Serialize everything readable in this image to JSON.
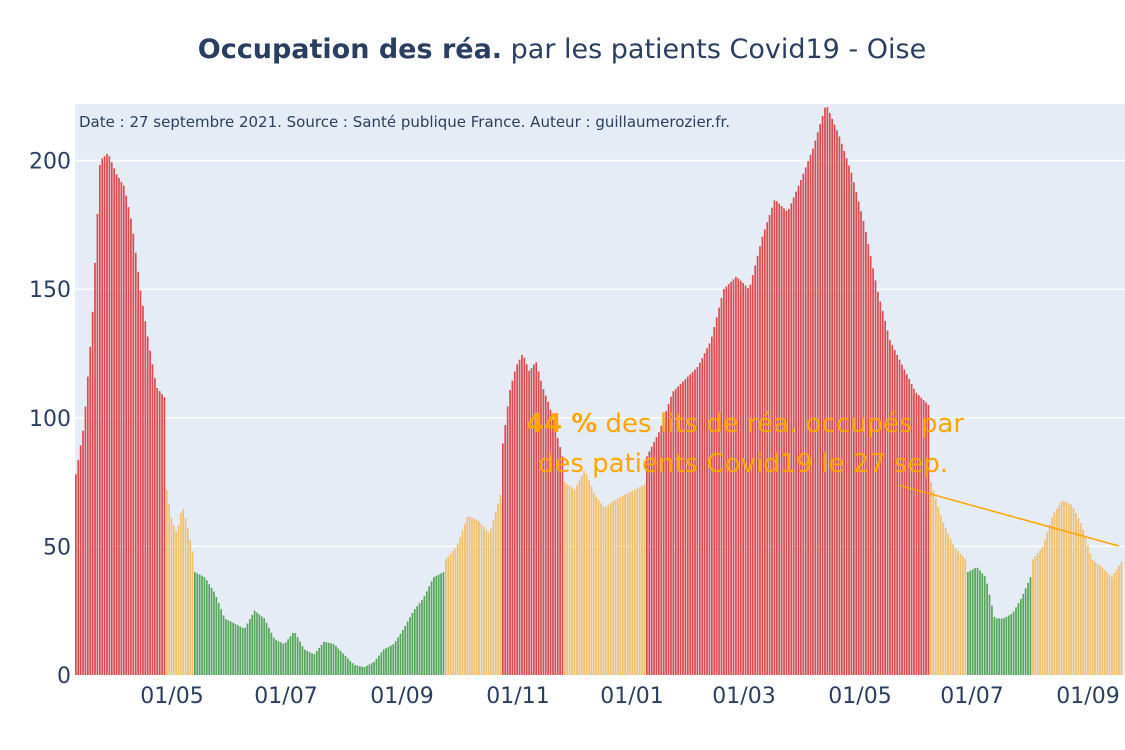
{
  "chart_data": {
    "type": "bar",
    "title_bold": "Occupation des réa.",
    "title_rest": " par les patients Covid19 - Oise",
    "note": "Date : 27 septembre 2021. Source : Santé publique France. Auteur : guillaumerozier.fr.",
    "annotation": {
      "value": "44",
      "pct": " %",
      "line1_rest": " des lits de réa. occupés par",
      "line2": "des patients Covid19 le 27 sep."
    },
    "xlabel": "",
    "ylabel": "",
    "ylim": [
      0,
      222
    ],
    "yticks": [
      0,
      50,
      100,
      150,
      200
    ],
    "xticks": [
      "01/05",
      "01/07",
      "01/09",
      "01/11",
      "01/01",
      "01/03",
      "01/05",
      "01/07",
      "01/09"
    ],
    "colors": {
      "high": "#de4c50",
      "medium": "#f2c06a",
      "low": "#56a55b",
      "plot_bg": "#e5ecf6",
      "grid": "#ffffff",
      "text": "#2a3f5f",
      "annotation": "#ffa500"
    },
    "segments": [
      {
        "period": "2020-03-18 to 2020-05-11",
        "level": "high",
        "approx_values": [
          78,
          97,
          136,
          200,
          203,
          195,
          190,
          175,
          150,
          130,
          112,
          108
        ]
      },
      {
        "period": "2020-05-12 to 2020-06-10",
        "level": "medium",
        "approx_values": [
          72,
          60,
          55,
          66,
          58,
          48
        ]
      },
      {
        "period": "2020-06-11 to 2020-09-30",
        "level": "low",
        "approx_values": [
          40,
          38,
          32,
          22,
          20,
          18,
          25,
          22,
          14,
          12,
          17,
          10,
          8,
          13,
          12,
          8,
          4,
          3,
          5,
          10,
          12,
          18,
          25,
          30,
          38,
          40
        ]
      },
      {
        "period": "2020-10-01 to 2020-10-25",
        "level": "medium",
        "approx_values": [
          45,
          50,
          62,
          60,
          55,
          70
        ]
      },
      {
        "period": "2020-10-26 to 2020-12-10",
        "level": "high",
        "approx_values": [
          90,
          110,
          120,
          125,
          118,
          122,
          112,
          105,
          95,
          85
        ]
      },
      {
        "period": "2020-12-11 to 2021-01-20",
        "level": "medium",
        "approx_values": [
          75,
          72,
          80,
          70,
          65,
          68,
          70,
          72,
          74
        ]
      },
      {
        "period": "2021-01-21 to 2021-06-10",
        "level": "high",
        "approx_values": [
          85,
          95,
          110,
          115,
          120,
          130,
          150,
          155,
          150,
          170,
          185,
          180,
          192,
          205,
          222,
          210,
          195,
          175,
          150,
          130,
          120,
          110,
          105
        ]
      },
      {
        "period": "2021-06-11 to 2021-07-10",
        "level": "medium",
        "approx_values": [
          75,
          60,
          50,
          45
        ]
      },
      {
        "period": "2021-07-11 to 2021-08-10",
        "level": "low",
        "approx_values": [
          40,
          42,
          38,
          22,
          22,
          24,
          30,
          38
        ]
      },
      {
        "period": "2021-08-11 to 2021-09-27",
        "level": "medium",
        "approx_values": [
          45,
          50,
          62,
          68,
          66,
          58,
          45,
          42,
          38,
          44
        ]
      }
    ]
  }
}
